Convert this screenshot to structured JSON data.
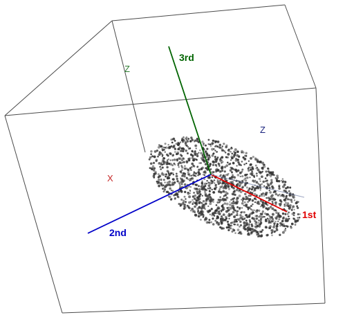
{
  "chart_data": {
    "type": "scatter",
    "title": "",
    "point_count": 1600,
    "point_color": "#333333",
    "box_axis_labels": [
      {
        "name": "Z",
        "color": "#2e7d32"
      },
      {
        "name": "Z",
        "color": "#1a237e"
      },
      {
        "name": "X",
        "color": "#c62828"
      }
    ],
    "principal_axes": [
      {
        "name": "1st",
        "color": "#e00000"
      },
      {
        "name": "2nd",
        "color": "#0000c8"
      },
      {
        "name": "3rd",
        "color": "#006400"
      }
    ],
    "grid": false,
    "legend": "none"
  }
}
